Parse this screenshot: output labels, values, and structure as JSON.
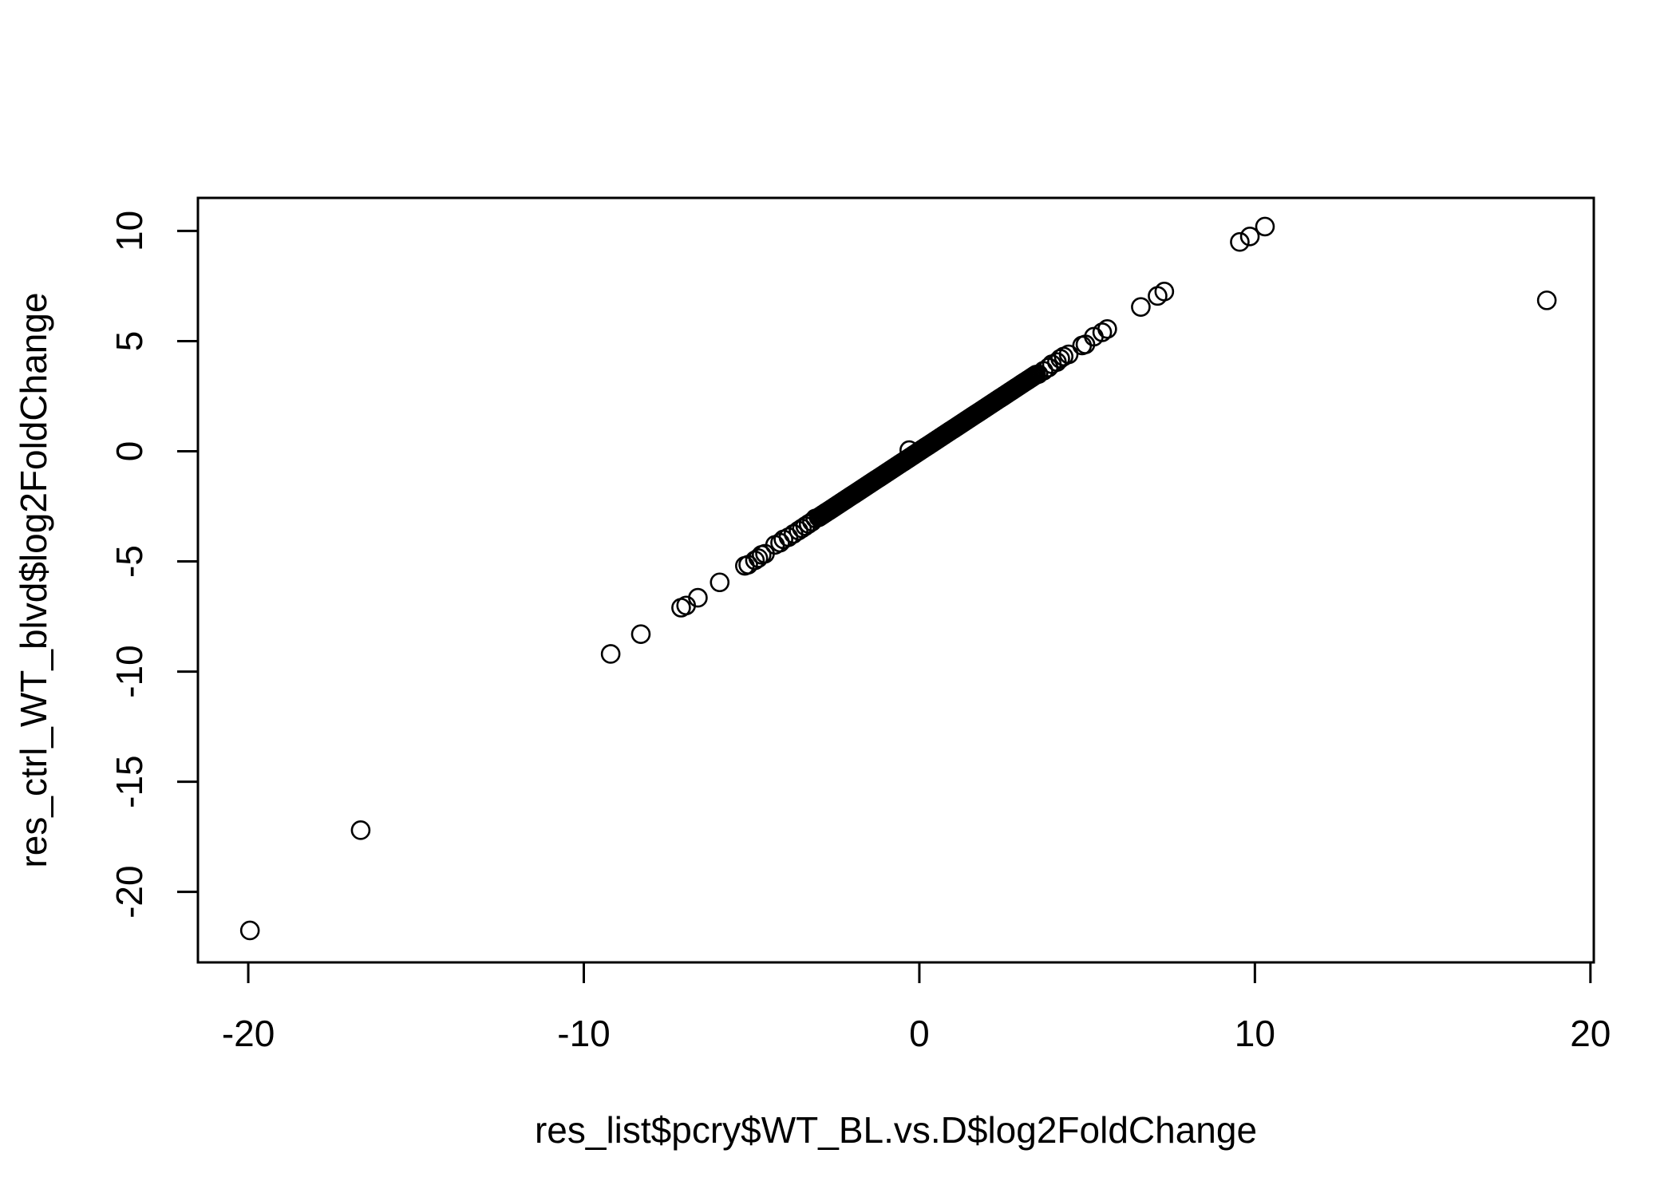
{
  "chart_data": {
    "type": "scatter",
    "title": "",
    "xlabel": "res_list$pcry$WT_BL.vs.D$log2FoldChange",
    "ylabel": "res_ctrl_WT_blvd$log2FoldChange",
    "xlim": [
      -21.5,
      20.1
    ],
    "ylim": [
      -23.2,
      11.5
    ],
    "x_ticks": [
      -20,
      -10,
      0,
      10,
      20
    ],
    "x_tick_labels": [
      "-20",
      "-10",
      "0",
      "10",
      "20"
    ],
    "y_ticks": [
      -20,
      -15,
      -10,
      -5,
      0,
      5,
      10
    ],
    "y_tick_labels": [
      "-20",
      "-15",
      "-10",
      "-5",
      "0",
      "5",
      "10"
    ],
    "grid": false,
    "legend": "none",
    "marker": "open-circle",
    "colors": {
      "points": "#000000",
      "axes": "#000000",
      "background": "#ffffff"
    },
    "points": [
      [
        -19.95,
        -21.75
      ],
      [
        -16.65,
        -17.2
      ],
      [
        -9.2,
        -9.2
      ],
      [
        -8.3,
        -8.3
      ],
      [
        -7.1,
        -7.1
      ],
      [
        -6.95,
        -7.0
      ],
      [
        -6.6,
        -6.65
      ],
      [
        -5.95,
        -5.95
      ],
      [
        -5.2,
        -5.2
      ],
      [
        -5.1,
        -5.15
      ],
      [
        -4.9,
        -4.95
      ],
      [
        -4.8,
        -4.85
      ],
      [
        -4.7,
        -4.7
      ],
      [
        -4.6,
        -4.65
      ],
      [
        -4.3,
        -4.25
      ],
      [
        -4.15,
        -4.15
      ],
      [
        -4.05,
        -4.0
      ],
      [
        -3.9,
        -3.9
      ],
      [
        -3.75,
        -3.75
      ],
      [
        -3.6,
        -3.6
      ],
      [
        -3.5,
        -3.5
      ],
      [
        -3.4,
        -3.4
      ],
      [
        -3.3,
        -3.3
      ],
      [
        -3.2,
        -3.2
      ],
      [
        -3.1,
        -3.05
      ],
      [
        -0.3,
        0.05
      ],
      [
        3.55,
        3.5
      ],
      [
        3.7,
        3.65
      ],
      [
        3.85,
        3.8
      ],
      [
        3.95,
        3.95
      ],
      [
        4.1,
        4.05
      ],
      [
        4.2,
        4.2
      ],
      [
        4.3,
        4.3
      ],
      [
        4.45,
        4.4
      ],
      [
        4.85,
        4.8
      ],
      [
        4.95,
        4.85
      ],
      [
        5.2,
        5.2
      ],
      [
        5.45,
        5.4
      ],
      [
        5.6,
        5.55
      ],
      [
        6.6,
        6.55
      ],
      [
        7.1,
        7.05
      ],
      [
        7.3,
        7.25
      ],
      [
        9.55,
        9.5
      ],
      [
        9.85,
        9.75
      ],
      [
        10.3,
        10.2
      ],
      [
        18.7,
        6.85
      ]
    ],
    "dense_band": {
      "x_from": -3.0,
      "x_to": 3.5,
      "slope": 1.0,
      "intercept": 0.0,
      "step": 0.045
    }
  }
}
